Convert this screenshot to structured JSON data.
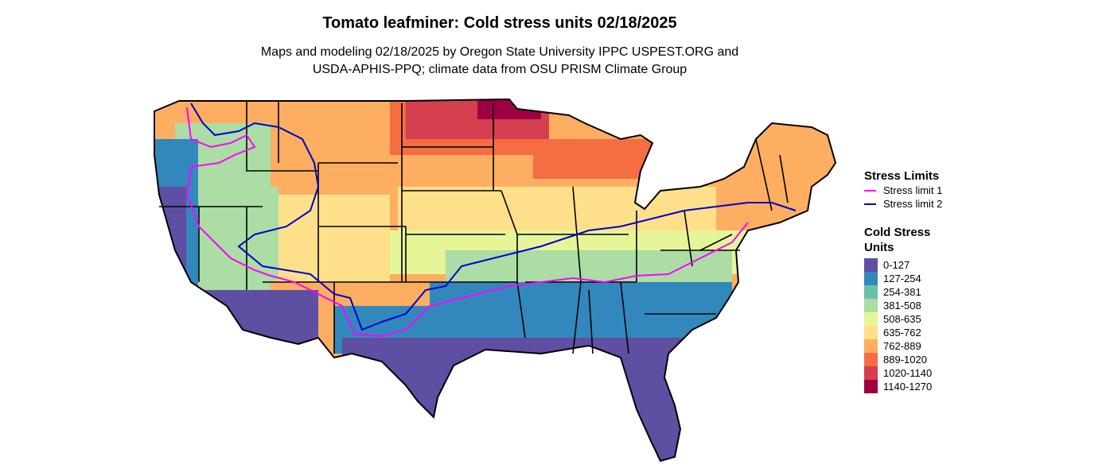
{
  "title": "Tomato leafminer: Cold stress units 02/18/2025",
  "subtitle_line1": "Maps and modeling 02/18/2025 by Oregon State University IPPC USPEST.ORG and",
  "subtitle_line2": "USDA-APHIS-PPQ; climate data from OSU PRISM Climate Group",
  "legend_lines": {
    "title": "Stress Limits",
    "items": [
      {
        "label": "Stress limit 1",
        "color": "#ff00ff"
      },
      {
        "label": "Stress limit 2",
        "color": "#0000cc"
      }
    ]
  },
  "legend_colors": {
    "title_line1": "Cold Stress",
    "title_line2": "Units",
    "items": [
      {
        "label": "0-127",
        "color": "#5e4fa2"
      },
      {
        "label": "127-254",
        "color": "#3288bd"
      },
      {
        "label": "254-381",
        "color": "#66c2a5"
      },
      {
        "label": "381-508",
        "color": "#abdda4"
      },
      {
        "label": "508-635",
        "color": "#e6f598"
      },
      {
        "label": "635-762",
        "color": "#fee08b"
      },
      {
        "label": "762-889",
        "color": "#fdae61"
      },
      {
        "label": "889-1020",
        "color": "#f46d43"
      },
      {
        "label": "1020-1140",
        "color": "#d53e4f"
      },
      {
        "label": "1140-1270",
        "color": "#9e0142"
      }
    ]
  }
}
